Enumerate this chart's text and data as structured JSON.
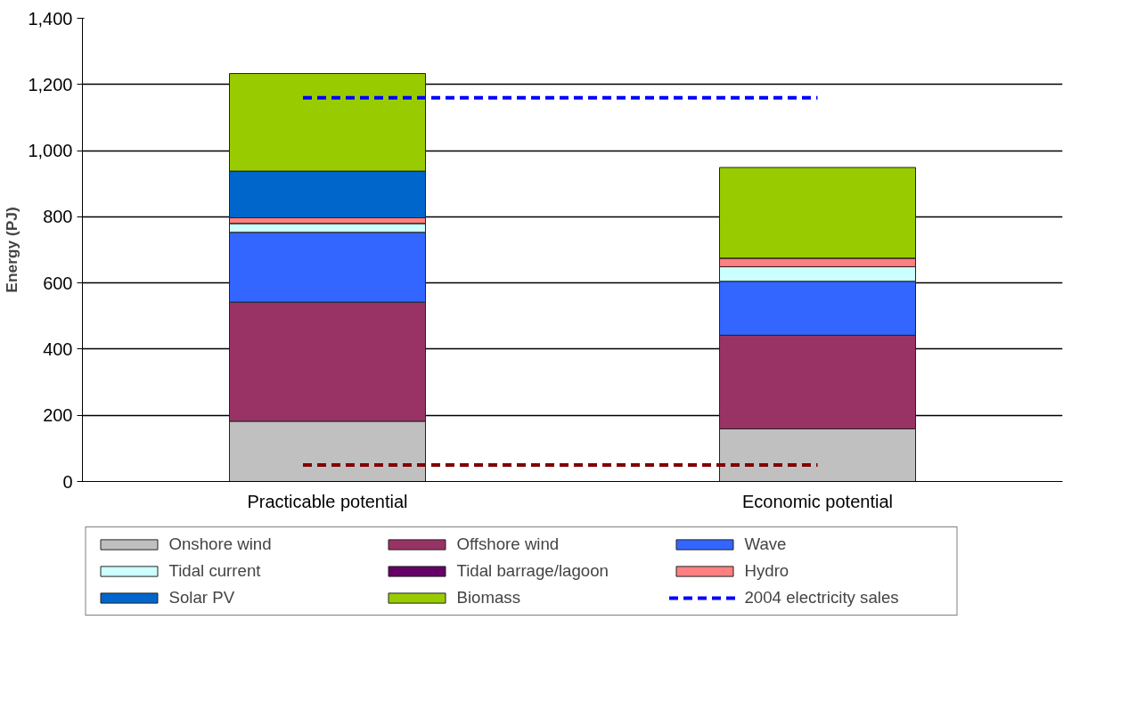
{
  "chart_data": {
    "type": "bar",
    "stacked": true,
    "ylabel": "Energy (PJ)",
    "categories": [
      "Practicable potential",
      "Economic potential"
    ],
    "series": [
      {
        "name": "Onshore wind",
        "color": "#c0c0c0",
        "values": [
          182,
          159
        ]
      },
      {
        "name": "Offshore wind",
        "color": "#993366",
        "values": [
          360,
          283
        ]
      },
      {
        "name": "Wave",
        "color": "#3366ff",
        "values": [
          211,
          163
        ]
      },
      {
        "name": "Tidal current",
        "color": "#ccffff",
        "values": [
          27,
          44
        ]
      },
      {
        "name": "Tidal barrage/lagoon",
        "color": "#660066",
        "values": [
          null,
          null
        ]
      },
      {
        "name": "Hydro",
        "color": "#ff8080",
        "values": [
          17,
          26
        ]
      },
      {
        "name": "Solar PV",
        "color": "#0066cc",
        "values": [
          141,
          0
        ]
      },
      {
        "name": "Biomass",
        "color": "#99cc00",
        "values": [
          295,
          274
        ]
      }
    ],
    "ylim": [
      0,
      1400
    ],
    "yticks": [
      {
        "value": 0,
        "label": "0"
      },
      {
        "value": 200,
        "label": "200"
      },
      {
        "value": 400,
        "label": "400"
      },
      {
        "value": 600,
        "label": "600"
      },
      {
        "value": 800,
        "label": "800"
      },
      {
        "value": 1000,
        "label": "1,000"
      },
      {
        "value": 1200,
        "label": "1,200"
      },
      {
        "value": 1400,
        "label": "1,400"
      }
    ],
    "grid": "y",
    "legend": "bottom",
    "ref_lines": [
      {
        "axis": "y",
        "value": 1160,
        "label": "2004 electricity sales",
        "color": "#0000ff",
        "line_style": "dashed"
      },
      {
        "axis": "y",
        "value": 50,
        "label": null,
        "color": "#800000",
        "line_style": "dashed"
      }
    ]
  }
}
